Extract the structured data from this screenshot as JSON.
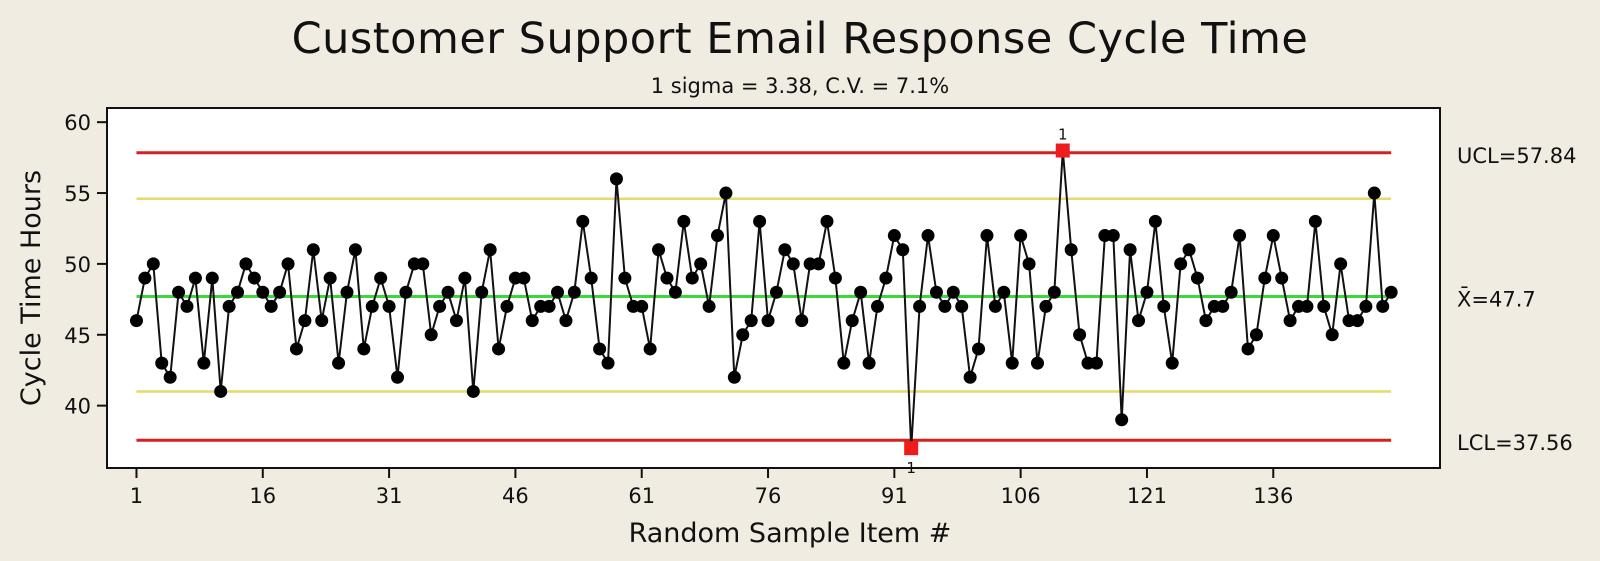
{
  "chart_data": {
    "type": "line",
    "title": "Customer Support Email Response Cycle Time",
    "subtitle": "1 sigma = 3.38, C.V. = 7.1%",
    "xlabel": "Random Sample Item #",
    "ylabel": "Cycle Time Hours",
    "x_ticks": [
      1,
      16,
      31,
      46,
      61,
      76,
      91,
      106,
      121,
      136
    ],
    "y_ticks": [
      40,
      45,
      50,
      55,
      60
    ],
    "xlim": [
      -2.5,
      155.8
    ],
    "ylim": [
      35.6,
      61.0
    ],
    "control_limits": {
      "ucl": {
        "value": 57.84,
        "label": "UCL=57.84",
        "color": "#d42020"
      },
      "center": {
        "value": 47.7,
        "label": "X̄=47.7",
        "color": "#3ad83a"
      },
      "lcl": {
        "value": 37.56,
        "label": "LCL=37.56",
        "color": "#d42020"
      },
      "upper_2sigma": {
        "value": 54.6,
        "color": "#e6da6a"
      },
      "lower_2sigma": {
        "value": 41.0,
        "color": "#e6da6a"
      }
    },
    "out_of_control": [
      {
        "x": 93,
        "y": 37.0,
        "label": "1"
      },
      {
        "x": 111,
        "y": 58.0,
        "label": "1"
      }
    ],
    "series": [
      {
        "line_color": "#111111",
        "marker_color": "#000000",
        "alert_color": "#ee1c1c",
        "values": [
          46,
          49,
          50,
          43,
          42,
          48,
          47,
          49,
          43,
          49,
          41,
          47,
          48,
          50,
          49,
          48,
          47,
          48,
          50,
          44,
          46,
          51,
          46,
          49,
          43,
          48,
          51,
          44,
          47,
          49,
          47,
          42,
          48,
          50,
          50,
          45,
          47,
          48,
          46,
          49,
          41,
          48,
          51,
          44,
          47,
          49,
          49,
          46,
          47,
          47,
          48,
          46,
          48,
          53,
          49,
          44,
          43,
          56,
          49,
          47,
          47,
          44,
          51,
          49,
          48,
          53,
          49,
          50,
          47,
          52,
          55,
          42,
          45,
          46,
          53,
          46,
          48,
          51,
          50,
          46,
          50,
          50,
          53,
          49,
          43,
          46,
          48,
          43,
          47,
          49,
          52,
          51,
          37,
          47,
          52,
          48,
          47,
          48,
          47,
          42,
          44,
          52,
          47,
          48,
          43,
          52,
          50,
          43,
          47,
          48,
          58,
          51,
          45,
          43,
          43,
          52,
          52,
          39,
          51,
          46,
          48,
          53,
          47,
          43,
          50,
          51,
          49,
          46,
          47,
          47,
          48,
          52,
          44,
          45,
          49,
          52,
          49,
          46,
          47,
          47,
          53,
          47,
          45,
          50,
          46,
          46,
          47,
          55,
          47,
          48
        ]
      }
    ]
  }
}
